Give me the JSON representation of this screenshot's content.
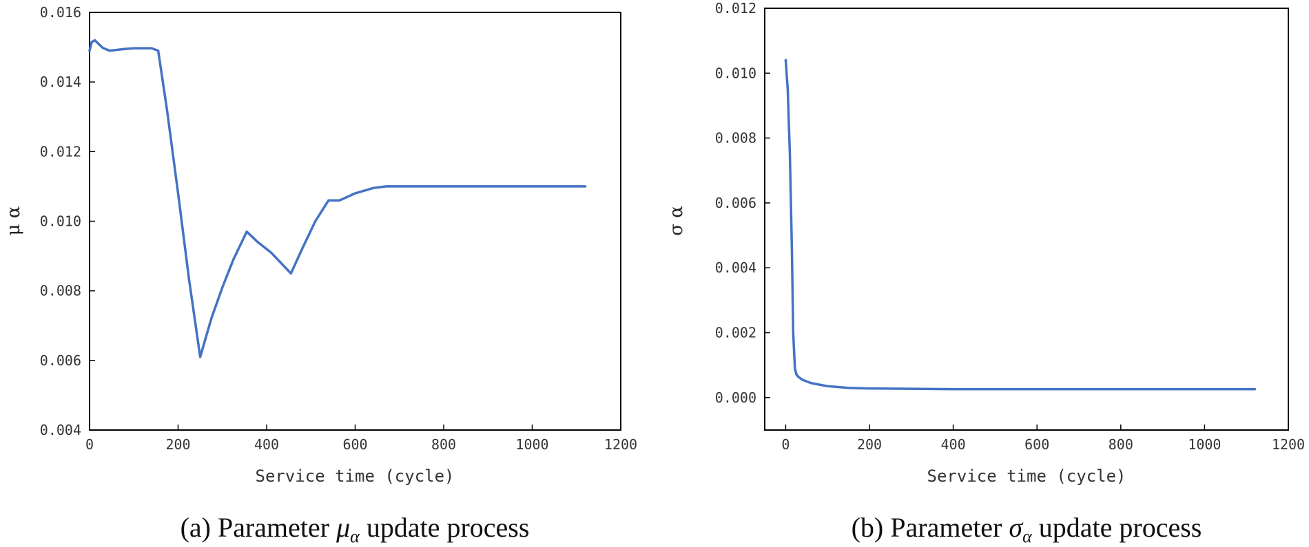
{
  "chart_data": [
    {
      "type": "line",
      "title": "",
      "xlabel": "Service time (cycle)",
      "ylabel": "μ α",
      "xlim": [
        0,
        1200
      ],
      "ylim": [
        0.004,
        0.016
      ],
      "xticks": [
        0,
        200,
        400,
        600,
        800,
        1000,
        1200
      ],
      "yticks": [
        0.004,
        0.006,
        0.008,
        0.01,
        0.012,
        0.014,
        0.016
      ],
      "xtick_labels": [
        "0",
        "200",
        "400",
        "600",
        "800",
        "1000",
        "1200"
      ],
      "ytick_labels": [
        "0.004",
        "0.006",
        "0.008",
        "0.010",
        "0.012",
        "0.014",
        "0.016"
      ],
      "caption": {
        "prefix": "(a) Parameter ",
        "symbol": "μ",
        "subscript": "α",
        "suffix": " update process"
      },
      "series": [
        {
          "name": "mu_alpha",
          "color": "#4472C4",
          "x": [
            0,
            5,
            12,
            20,
            30,
            45,
            60,
            80,
            100,
            120,
            140,
            155,
            175,
            200,
            225,
            250,
            275,
            300,
            325,
            355,
            380,
            410,
            455,
            480,
            510,
            540,
            565,
            600,
            640,
            670,
            700,
            800,
            900,
            1000,
            1120
          ],
          "y": [
            0.0149,
            0.01515,
            0.0152,
            0.0151,
            0.01498,
            0.0149,
            0.01492,
            0.01495,
            0.01497,
            0.01497,
            0.01497,
            0.0149,
            0.0132,
            0.0108,
            0.0083,
            0.0061,
            0.0072,
            0.0081,
            0.0089,
            0.0097,
            0.0094,
            0.0091,
            0.0085,
            0.0092,
            0.01,
            0.0106,
            0.0106,
            0.0108,
            0.01095,
            0.011,
            0.011,
            0.011,
            0.011,
            0.011,
            0.011
          ]
        }
      ]
    },
    {
      "type": "line",
      "title": "",
      "xlabel": "Service time (cycle)",
      "ylabel": "σ α",
      "xlim": [
        -50,
        1200
      ],
      "ylim": [
        -0.001,
        0.012
      ],
      "xticks": [
        0,
        200,
        400,
        600,
        800,
        1000,
        1200
      ],
      "yticks": [
        0.0,
        0.002,
        0.004,
        0.006,
        0.008,
        0.01,
        0.012
      ],
      "xtick_labels": [
        "0",
        "200",
        "400",
        "600",
        "800",
        "1000",
        "1200"
      ],
      "ytick_labels": [
        "0.000",
        "0.002",
        "0.004",
        "0.006",
        "0.008",
        "0.010",
        "0.012"
      ],
      "caption": {
        "prefix": "(b) Parameter ",
        "symbol": "σ",
        "subscript": "α",
        "suffix": " update process"
      },
      "series": [
        {
          "name": "sigma_alpha",
          "color": "#4472C4",
          "x": [
            0,
            5,
            10,
            15,
            18,
            22,
            26,
            32,
            40,
            50,
            60,
            80,
            100,
            150,
            200,
            300,
            400,
            500,
            600,
            800,
            1000,
            1120
          ],
          "y": [
            0.0104,
            0.0095,
            0.0075,
            0.0045,
            0.002,
            0.0009,
            0.0007,
            0.00062,
            0.00055,
            0.0005,
            0.00045,
            0.0004,
            0.00035,
            0.0003,
            0.00028,
            0.00027,
            0.00026,
            0.00026,
            0.00026,
            0.00026,
            0.00026,
            0.00026
          ]
        }
      ]
    }
  ]
}
